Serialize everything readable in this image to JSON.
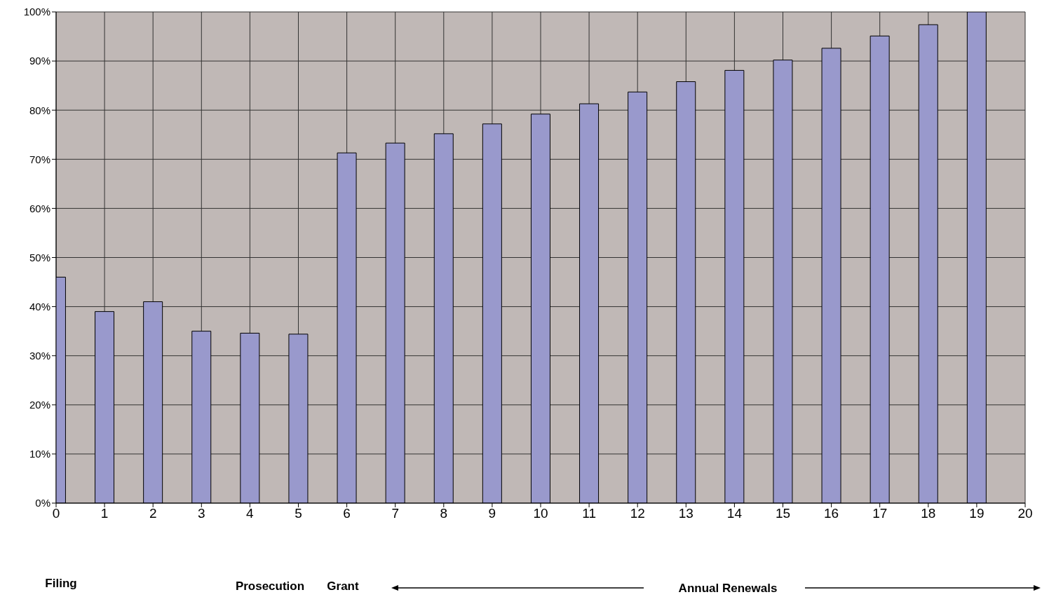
{
  "chart_data": {
    "type": "bar",
    "x": [
      0,
      1,
      2,
      3,
      4,
      5,
      6,
      7,
      8,
      9,
      10,
      11,
      12,
      13,
      14,
      15,
      16,
      17,
      18,
      19
    ],
    "values": [
      46,
      39,
      41,
      35,
      34.6,
      34.4,
      71.3,
      73.3,
      75.2,
      77.2,
      79.2,
      81.3,
      83.7,
      85.8,
      88.1,
      90.2,
      92.6,
      95.1,
      97.4,
      100
    ],
    "color": "#9999cc",
    "xlim": [
      0,
      20
    ],
    "xticks": [
      0,
      1,
      2,
      3,
      4,
      5,
      6,
      7,
      8,
      9,
      10,
      11,
      12,
      13,
      14,
      15,
      16,
      17,
      18,
      19,
      20
    ],
    "ylim": [
      0,
      100
    ],
    "yticks": [
      {
        "value": 0,
        "label": "0%"
      },
      {
        "value": 10,
        "label": "10%"
      },
      {
        "value": 20,
        "label": "20%"
      },
      {
        "value": 30,
        "label": "30%"
      },
      {
        "value": 40,
        "label": "40%"
      },
      {
        "value": 50,
        "label": "50%"
      },
      {
        "value": 60,
        "label": "60%"
      },
      {
        "value": 70,
        "label": "70%"
      },
      {
        "value": 80,
        "label": "80%"
      },
      {
        "value": 90,
        "label": "90%"
      },
      {
        "value": 100,
        "label": "100%"
      }
    ],
    "grid": true,
    "annotations": [
      "Filing",
      "Prosecution",
      "Grant",
      "Annual Renewals"
    ]
  }
}
